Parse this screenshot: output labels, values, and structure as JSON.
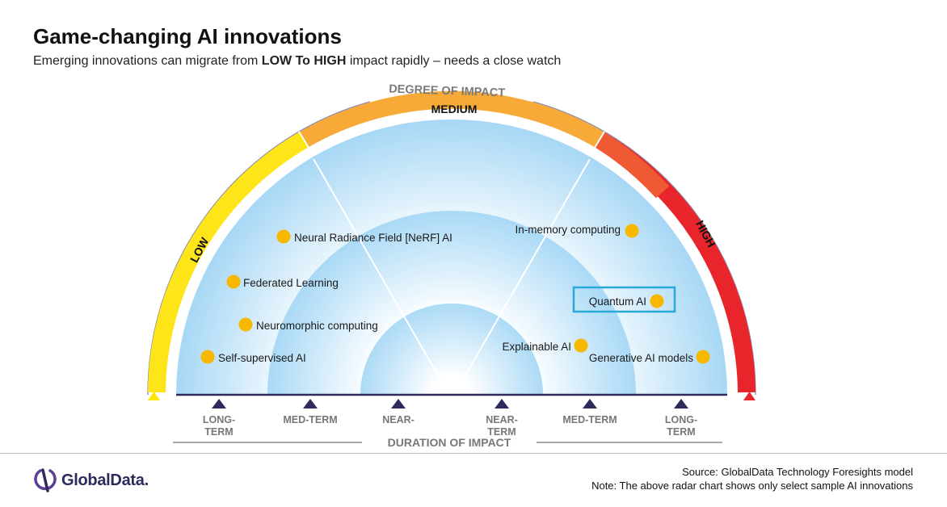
{
  "header": {
    "title": "Game-changing AI innovations",
    "subtitle_pre": "Emerging innovations can migrate from ",
    "subtitle_bold": "LOW To HIGH",
    "subtitle_post": " impact rapidly – needs a close watch"
  },
  "impact_arc": {
    "heading": "DEGREE OF IMPACT",
    "low": "LOW",
    "medium": "MEDIUM",
    "high": "HIGH",
    "colors": {
      "low": "#ffe600",
      "medium": "#f7a53a",
      "high": "#e8252a"
    }
  },
  "duration": {
    "heading": "DURATION OF IMPACT",
    "ticks": [
      {
        "line1": "LONG-",
        "line2": "TERM"
      },
      {
        "line1": "MED-TERM",
        "line2": ""
      },
      {
        "line1": "NEAR-",
        "line2": ""
      },
      {
        "line1": "NEAR-",
        "line2": "TERM"
      },
      {
        "line1": "MED-TERM",
        "line2": ""
      },
      {
        "line1": "LONG-",
        "line2": "TERM"
      }
    ]
  },
  "innovations": [
    {
      "label": "Neural Radiance Field [NeRF] AI"
    },
    {
      "label": "Federated Learning"
    },
    {
      "label": "Neuromorphic  computing"
    },
    {
      "label": "Self-supervised AI"
    },
    {
      "label": "In-memory  computing"
    },
    {
      "label": "Quantum AI",
      "highlighted": true
    },
    {
      "label": "Explainable AI"
    },
    {
      "label": "Generative AI models"
    }
  ],
  "footer": {
    "brand": "GlobalData.",
    "source": "Source:  GlobalData Technology Foresights model",
    "note": "Note: The above radar chart shows only select sample AI innovations"
  }
}
